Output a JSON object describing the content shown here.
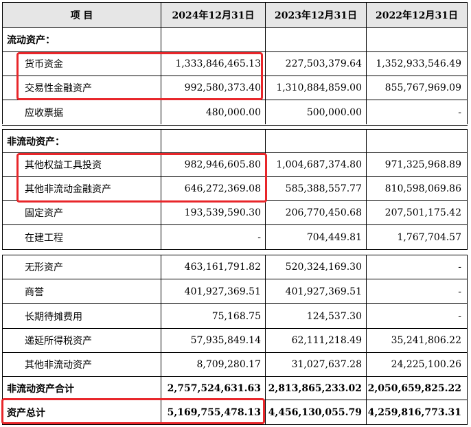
{
  "header": {
    "item": "项 目",
    "col1": "2024年12月31日",
    "col2": "2023年12月31日",
    "col3": "2022年12月31日"
  },
  "sections": {
    "current_assets": "流动资产：",
    "noncurrent_assets": "非流动资产："
  },
  "rows": {
    "cash": {
      "label": "货币资金",
      "v1": "1,333,846,465.13",
      "v2": "227,503,379.64",
      "v3": "1,352,933,546.49"
    },
    "trading": {
      "label": "交易性金融资产",
      "v1": "992,580,373.40",
      "v2": "1,310,884,859.00",
      "v3": "855,767,969.09"
    },
    "notes": {
      "label": "应收票据",
      "v1": "480,000.00",
      "v2": "500,000.00",
      "v3": "-"
    },
    "equity": {
      "label": "其他权益工具投资",
      "v1": "982,946,605.80",
      "v2": "1,004,687,374.80",
      "v3": "971,325,968.89"
    },
    "other_fin": {
      "label": "其他非流动金融资产",
      "v1": "646,272,369.08",
      "v2": "585,388,557.77",
      "v3": "810,598,069.86"
    },
    "fixed": {
      "label": "固定资产",
      "v1": "193,539,590.30",
      "v2": "206,770,450.68",
      "v3": "207,501,175.42"
    },
    "construction": {
      "label": "在建工程",
      "v1": "-",
      "v2": "704,449.81",
      "v3": "1,767,704.57"
    },
    "intangible": {
      "label": "无形资产",
      "v1": "463,161,791.82",
      "v2": "520,324,169.30",
      "v3": "-"
    },
    "goodwill": {
      "label": "商誉",
      "v1": "401,927,369.51",
      "v2": "401,927,369.51",
      "v3": "-"
    },
    "prepaid": {
      "label": "长期待摊费用",
      "v1": "75,168.75",
      "v2": "124,537.30",
      "v3": "-"
    },
    "deferred_tax": {
      "label": "递延所得税资产",
      "v1": "57,935,849.14",
      "v2": "62,111,218.49",
      "v3": "35,241,806.22"
    },
    "other_nc": {
      "label": "其他非流动资产",
      "v1": "8,709,280.17",
      "v2": "31,027,637.28",
      "v3": "24,225,100.26"
    },
    "nc_total": {
      "label": "非流动资产合计",
      "v1": "2,757,524,631.63",
      "v2": "2,813,865,233.02",
      "v3": "2,050,659,825.22"
    },
    "total": {
      "label": "资产总计",
      "v1": "5,169,755,478.13",
      "v2": "4,456,130,055.79",
      "v3": "4,259,816,773.31"
    }
  },
  "highlight_color": "#e8262a"
}
